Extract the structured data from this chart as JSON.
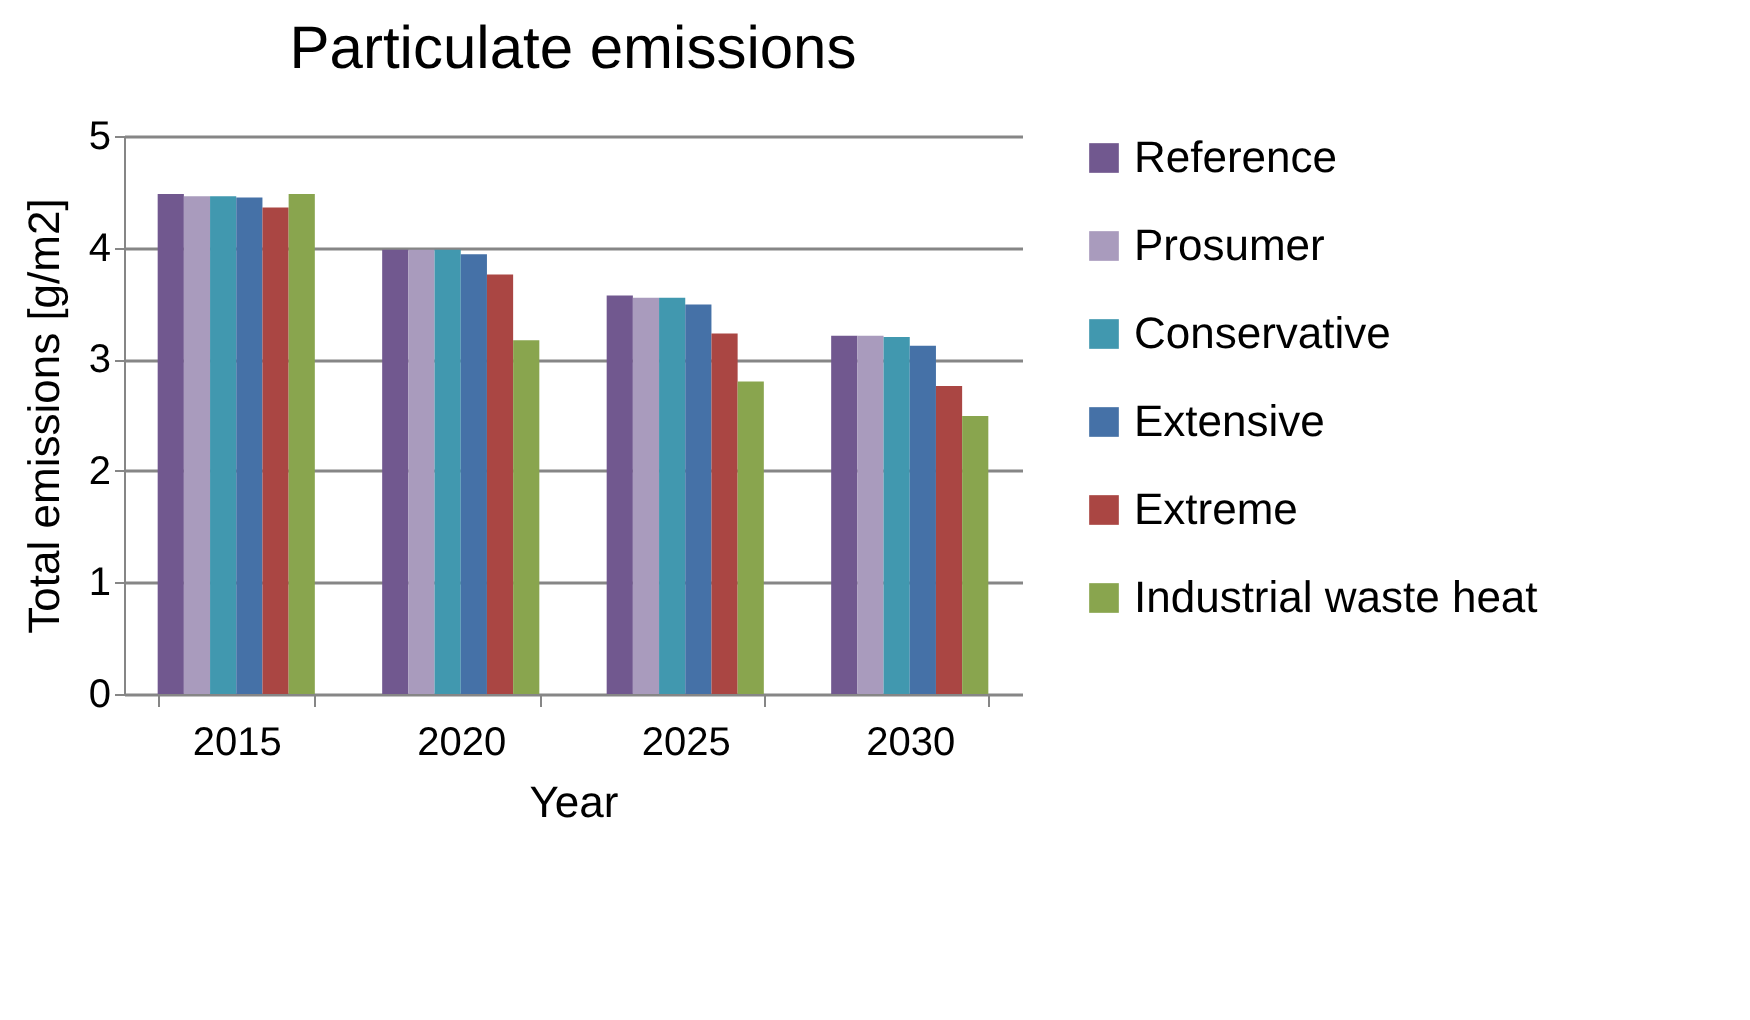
{
  "chart_data": {
    "type": "bar",
    "title": "Particulate emissions",
    "xlabel": "Year",
    "ylabel": "Total emissions [g/m2]",
    "categories": [
      "2015",
      "2020",
      "2025",
      "2030"
    ],
    "series": [
      {
        "name": "Reference",
        "color": "#71588f",
        "values": [
          4.48,
          3.98,
          3.57,
          3.21
        ]
      },
      {
        "name": "Prosumer",
        "color": "#a99bbd",
        "values": [
          4.46,
          3.98,
          3.55,
          3.21
        ]
      },
      {
        "name": "Conservative",
        "color": "#4198af",
        "values": [
          4.46,
          3.98,
          3.55,
          3.2
        ]
      },
      {
        "name": "Extensive",
        "color": "#4571a7",
        "values": [
          4.45,
          3.94,
          3.49,
          3.12
        ]
      },
      {
        "name": "Extreme",
        "color": "#aa4643",
        "values": [
          4.36,
          3.76,
          3.23,
          2.76
        ]
      },
      {
        "name": "Industrial waste heat",
        "color": "#89a54e",
        "values": [
          4.48,
          3.17,
          2.8,
          2.49
        ]
      }
    ],
    "ylim": [
      0,
      5
    ],
    "yticks": [
      0,
      1,
      2,
      3,
      4,
      5
    ],
    "grid": "y",
    "legend": "right"
  }
}
